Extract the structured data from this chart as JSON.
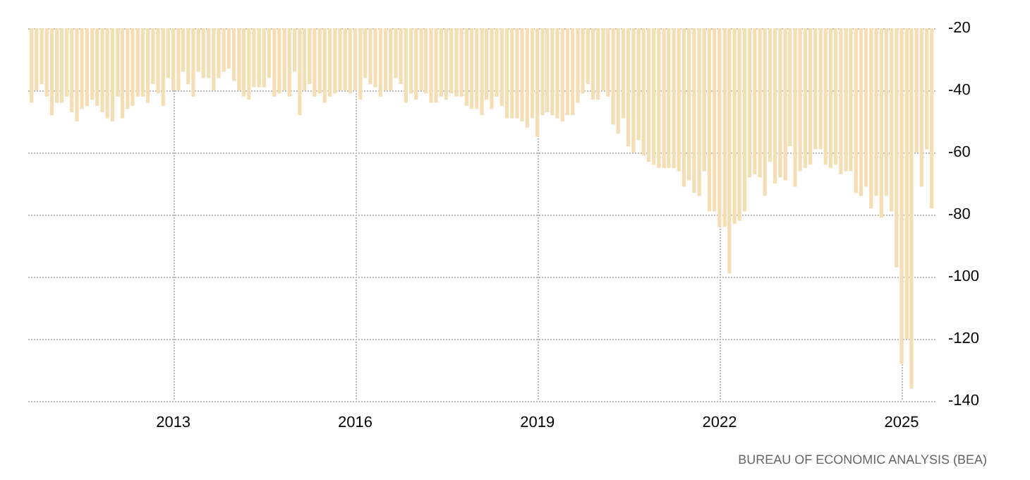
{
  "chart_data": {
    "type": "bar",
    "x": [
      "2010-09",
      "2010-10",
      "2010-11",
      "2010-12",
      "2011-01",
      "2011-02",
      "2011-03",
      "2011-04",
      "2011-05",
      "2011-06",
      "2011-07",
      "2011-08",
      "2011-09",
      "2011-10",
      "2011-11",
      "2011-12",
      "2012-01",
      "2012-02",
      "2012-03",
      "2012-04",
      "2012-05",
      "2012-06",
      "2012-07",
      "2012-08",
      "2012-09",
      "2012-10",
      "2012-11",
      "2012-12",
      "2013-01",
      "2013-02",
      "2013-03",
      "2013-04",
      "2013-05",
      "2013-06",
      "2013-07",
      "2013-08",
      "2013-09",
      "2013-10",
      "2013-11",
      "2013-12",
      "2014-01",
      "2014-02",
      "2014-03",
      "2014-04",
      "2014-05",
      "2014-06",
      "2014-07",
      "2014-08",
      "2014-09",
      "2014-10",
      "2014-11",
      "2014-12",
      "2015-01",
      "2015-02",
      "2015-03",
      "2015-04",
      "2015-05",
      "2015-06",
      "2015-07",
      "2015-08",
      "2015-09",
      "2015-10",
      "2015-11",
      "2015-12",
      "2016-01",
      "2016-02",
      "2016-03",
      "2016-04",
      "2016-05",
      "2016-06",
      "2016-07",
      "2016-08",
      "2016-09",
      "2016-10",
      "2016-11",
      "2016-12",
      "2017-01",
      "2017-02",
      "2017-03",
      "2017-04",
      "2017-05",
      "2017-06",
      "2017-07",
      "2017-08",
      "2017-09",
      "2017-10",
      "2017-11",
      "2017-12",
      "2018-01",
      "2018-02",
      "2018-03",
      "2018-04",
      "2018-05",
      "2018-06",
      "2018-07",
      "2018-08",
      "2018-09",
      "2018-10",
      "2018-11",
      "2018-12",
      "2019-01",
      "2019-02",
      "2019-03",
      "2019-04",
      "2019-05",
      "2019-06",
      "2019-07",
      "2019-08",
      "2019-09",
      "2019-10",
      "2019-11",
      "2019-12",
      "2020-01",
      "2020-02",
      "2020-03",
      "2020-04",
      "2020-05",
      "2020-06",
      "2020-07",
      "2020-08",
      "2020-09",
      "2020-10",
      "2020-11",
      "2020-12",
      "2021-01",
      "2021-02",
      "2021-03",
      "2021-04",
      "2021-05",
      "2021-06",
      "2021-07",
      "2021-08",
      "2021-09",
      "2021-10",
      "2021-11",
      "2021-12",
      "2022-01",
      "2022-02",
      "2022-03",
      "2022-04",
      "2022-05",
      "2022-06",
      "2022-07",
      "2022-08",
      "2022-09",
      "2022-10",
      "2022-11",
      "2022-12",
      "2023-01",
      "2023-02",
      "2023-03",
      "2023-04",
      "2023-05",
      "2023-06",
      "2023-07",
      "2023-08",
      "2023-09",
      "2023-10",
      "2023-11",
      "2023-12",
      "2024-01",
      "2024-02",
      "2024-03",
      "2024-04",
      "2024-05",
      "2024-06",
      "2024-07",
      "2024-08",
      "2024-09",
      "2024-10",
      "2024-11",
      "2024-12",
      "2025-01",
      "2025-02",
      "2025-03",
      "2025-04",
      "2025-05",
      "2025-06",
      "2025-07"
    ],
    "series": [
      {
        "color": "#f5deb3",
        "values": [
          -44,
          -40,
          -38,
          -42,
          -48,
          -44,
          -44,
          -42,
          -47,
          -50,
          -46,
          -45,
          -43,
          -45,
          -47,
          -49,
          -50,
          -42,
          -49,
          -46,
          -45,
          -42,
          -42,
          -44,
          -38,
          -41,
          -45,
          -36,
          -40,
          -40,
          -34,
          -38,
          -42,
          -34,
          -36,
          -36,
          -40,
          -36,
          -34,
          -33,
          -37,
          -40,
          -42,
          -43,
          -39,
          -39,
          -39,
          -36,
          -42,
          -41,
          -40,
          -42,
          -34,
          -48,
          -40,
          -38,
          -42,
          -41,
          -44,
          -42,
          -41,
          -40,
          -40,
          -41,
          -40,
          -43,
          -36,
          -38,
          -39,
          -42,
          -40,
          -40,
          -36,
          -38,
          -44,
          -41,
          -43,
          -40,
          -41,
          -44,
          -44,
          -42,
          -43,
          -41,
          -42,
          -42,
          -45,
          -46,
          -46,
          -48,
          -43,
          -46,
          -42,
          -45,
          -49,
          -49,
          -49,
          -50,
          -52,
          -49,
          -55,
          -48,
          -47,
          -48,
          -49,
          -50,
          -48,
          -48,
          -44,
          -41,
          -38,
          -43,
          -43,
          -40,
          -42,
          -51,
          -54,
          -49,
          -58,
          -60,
          -56,
          -61,
          -63,
          -64,
          -65,
          -65,
          -65,
          -65,
          -66,
          -71,
          -69,
          -73,
          -74,
          -66,
          -79,
          -79,
          -84,
          -84,
          -99,
          -83,
          -82,
          -79,
          -68,
          -67,
          -68,
          -74,
          -63,
          -70,
          -68,
          -69,
          -58,
          -71,
          -66,
          -65,
          -64,
          -59,
          -59,
          -64,
          -65,
          -64,
          -67,
          -66,
          -66,
          -73,
          -74,
          -71,
          -78,
          -74,
          -81,
          -74,
          -79,
          -97,
          -128,
          -120,
          -136,
          -60,
          -71,
          -59,
          -78
        ]
      }
    ],
    "xlim": [
      "2010-08-12",
      "2025-08-01"
    ],
    "xticks": [
      "2013",
      "2016",
      "2019",
      "2022",
      "2025"
    ],
    "ylim": [
      -140,
      -20
    ],
    "yticks": [
      -20,
      -40,
      -60,
      -80,
      -100,
      -120,
      -140
    ],
    "grid": true,
    "annotations": [
      "BUREAU OF ECONOMIC ANALYSIS (BEA)"
    ]
  }
}
